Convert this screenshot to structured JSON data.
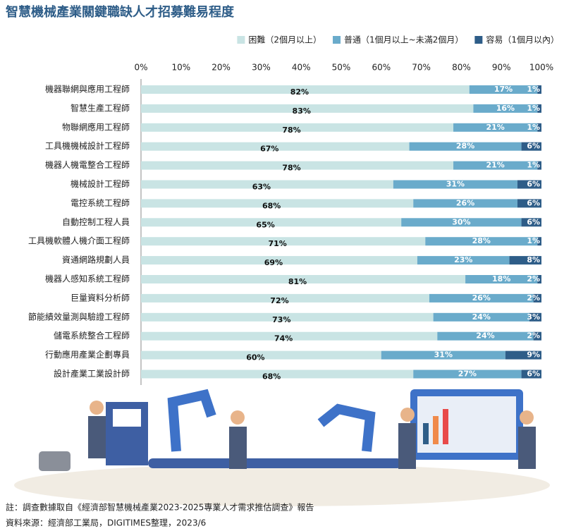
{
  "chart_data": {
    "type": "stacked-barh",
    "title": "智慧機械產業關鍵職缺人才招募難易程度",
    "categories": [
      "機器聯網與應用工程師",
      "智慧生產工程師",
      "物聯網應用工程師",
      "工具機機械設計工程師",
      "機器人機電整合工程師",
      "機械設計工程師",
      "電控系統工程師",
      "自動控制工程人員",
      "工具機軟體人機介面工程師",
      "資通網路規劃人員",
      "機器人感知系統工程師",
      "巨量資料分析師",
      "節能績效量測與驗證工程師",
      "儲電系統整合工程師",
      "行動應用產業企劃專員",
      "設計產業工業設計師"
    ],
    "series": [
      {
        "name": "困難（2個月以上）",
        "color": "#c9e4e4",
        "values": [
          82,
          83,
          78,
          67,
          78,
          63,
          68,
          65,
          71,
          69,
          81,
          72,
          73,
          74,
          60,
          68
        ],
        "value_labels": [
          "82%",
          "83%",
          "78%",
          "67%",
          "78%",
          "63%",
          "68%",
          "65%",
          "71%",
          "69%",
          "81%",
          "72%",
          "73%",
          "74%",
          "60%",
          "68%"
        ]
      },
      {
        "name": "普通（1個月以上~未滿2個月）",
        "color": "#6aabcb",
        "values": [
          17,
          16,
          21,
          28,
          21,
          31,
          26,
          30,
          28,
          23,
          18,
          26,
          24,
          24,
          31,
          27
        ],
        "value_labels": [
          "17%",
          "16%",
          "21%",
          "28%",
          "21%",
          "31%",
          "26%",
          "30%",
          "28%",
          "23%",
          "18%",
          "26%",
          "24%",
          "24%",
          "31%",
          "27%"
        ]
      },
      {
        "name": "容易（1個月以內）",
        "color": "#2e5d88",
        "values": [
          1,
          1,
          1,
          6,
          1,
          6,
          6,
          6,
          1,
          8,
          2,
          2,
          3,
          2,
          9,
          6
        ],
        "value_labels": [
          "1%",
          "1%",
          "1%",
          "6%",
          "1%",
          "6%",
          "6%",
          "6%",
          "1%",
          "8%",
          "2%",
          "2%",
          "3%",
          "2%",
          "9%",
          "6%"
        ]
      }
    ],
    "xlim": [
      0,
      100
    ],
    "xticks": [
      {
        "value": 0,
        "label": "0%"
      },
      {
        "value": 10,
        "label": "10%"
      },
      {
        "value": 20,
        "label": "20%"
      },
      {
        "value": 30,
        "label": "30%"
      },
      {
        "value": 40,
        "label": "40%"
      },
      {
        "value": 50,
        "label": "50%"
      },
      {
        "value": 60,
        "label": "60%"
      },
      {
        "value": 70,
        "label": "70%"
      },
      {
        "value": 80,
        "label": "80%"
      },
      {
        "value": 90,
        "label": "90%"
      },
      {
        "value": 100,
        "label": "100%"
      }
    ],
    "notes": [
      "註：調查數據取自《經濟部智慧機械產業2023-2025專業人才需求推估調查》報告",
      "資料來源：經濟部工業局，DIGITIMES整理，2023/6"
    ]
  }
}
